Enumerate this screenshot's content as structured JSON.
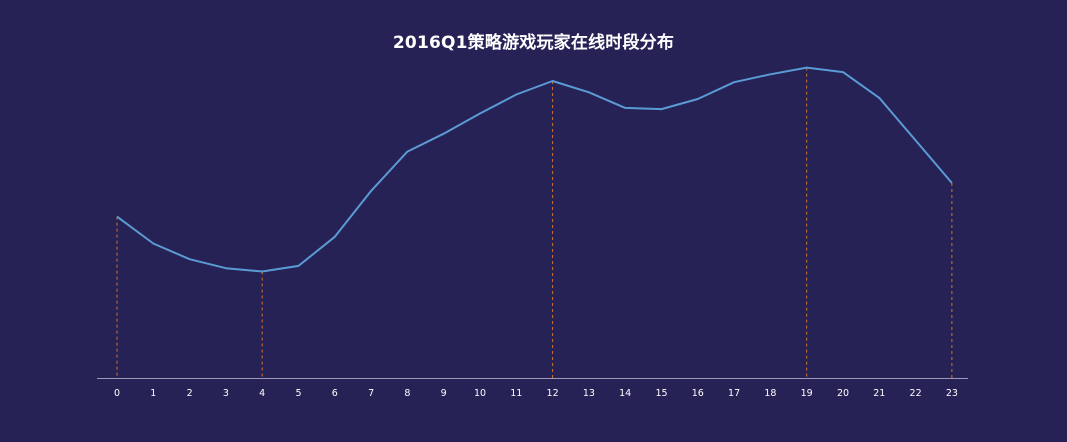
{
  "chart_data": {
    "type": "line",
    "title": "2016Q1策略游戏玩家在线时段分布",
    "xlabel": "",
    "ylabel": "",
    "categories": [
      "0",
      "1",
      "2",
      "3",
      "4",
      "5",
      "6",
      "7",
      "8",
      "9",
      "10",
      "11",
      "12",
      "13",
      "14",
      "15",
      "16",
      "17",
      "18",
      "19",
      "20",
      "21",
      "22",
      "23"
    ],
    "series": [
      {
        "values": [
          36,
          24,
          17,
          13,
          11.5,
          14,
          27,
          47.5,
          65,
          73,
          82,
          90.5,
          96.5,
          91.5,
          84.5,
          84,
          88.5,
          96,
          99.5,
          102.5,
          100.5,
          89,
          70,
          51
        ]
      }
    ],
    "ylim": [
      -36,
      105
    ],
    "grid": false,
    "legend": "none",
    "highlighted_categories": [
      "0",
      "4",
      "12",
      "19",
      "23"
    ],
    "colors": {
      "background": "#262255",
      "line": "#5b9bd5",
      "marker_lines": "#d0732a",
      "axis": "#9a9ab8",
      "text": "#ffffff"
    }
  }
}
